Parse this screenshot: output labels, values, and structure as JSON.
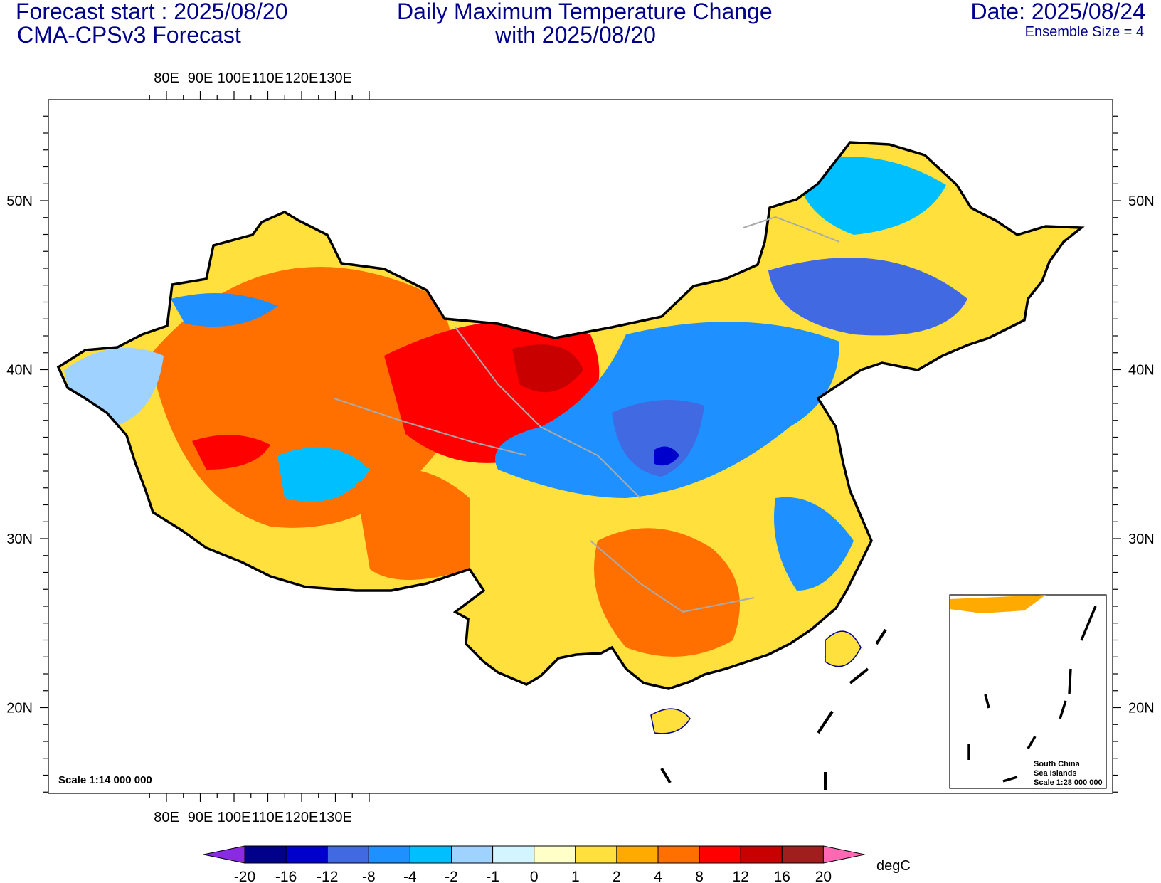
{
  "header": {
    "forecast_start": "Forecast start : 2025/08/20",
    "model": "CMA-CPSv3 Forecast",
    "title_line1": "Daily Maximum Temperature Change",
    "title_line2": "with 2025/08/20",
    "date": "Date: 2025/08/24",
    "ensemble": "Ensemble Size = 4"
  },
  "axes": {
    "lon_labels": [
      "80E",
      "90E",
      "100E",
      "110E",
      "120E",
      "130E"
    ],
    "lat_labels": [
      "50N",
      "40N",
      "30N",
      "20N"
    ]
  },
  "scale_note": "Scale 1:14 000 000",
  "inset": {
    "line1": "South China",
    "line2": "Sea Islands",
    "line3": "Scale 1:28 000 000"
  },
  "colorbar": {
    "unit": "degC",
    "levels": [
      "-20",
      "-16",
      "-12",
      "-8",
      "-4",
      "-2",
      "-1",
      "0",
      "1",
      "2",
      "4",
      "8",
      "12",
      "16",
      "20"
    ],
    "colors": [
      "#8a2be2",
      "#00008b",
      "#0000cd",
      "#4169e1",
      "#1e90ff",
      "#00bfff",
      "#a0d2ff",
      "#d2f5ff",
      "#ffffc8",
      "#ffe03c",
      "#ffaa00",
      "#ff7000",
      "#ff0000",
      "#c80000",
      "#a01e1e",
      "#ff69b4"
    ]
  }
}
